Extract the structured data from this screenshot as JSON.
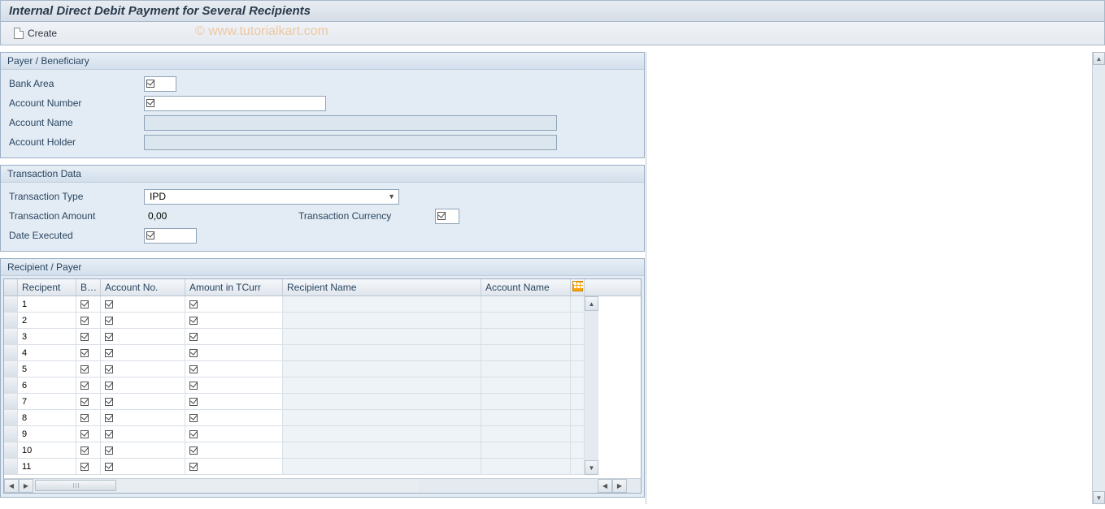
{
  "title": "Internal Direct Debit Payment for Several Recipients",
  "watermark": "© www.tutorialkart.com",
  "toolbar": {
    "create_label": "Create"
  },
  "panels": {
    "payer": {
      "title": "Payer / Beneficiary",
      "labels": {
        "bank_area": "Bank Area",
        "account_number": "Account Number",
        "account_name": "Account Name",
        "account_holder": "Account Holder"
      },
      "values": {
        "bank_area": "",
        "account_number": "",
        "account_name": "",
        "account_holder": ""
      }
    },
    "transaction": {
      "title": "Transaction Data",
      "labels": {
        "transaction_type": "Transaction Type",
        "transaction_amount": "Transaction Amount",
        "transaction_currency": "Transaction Currency",
        "date_executed": "Date Executed"
      },
      "values": {
        "transaction_type": "IPD",
        "transaction_amount": "0,00",
        "transaction_currency": "",
        "date_executed": ""
      }
    },
    "recipient": {
      "title": "Recipient / Payer",
      "columns": {
        "recipient": "Recipent",
        "bank": "Ba…",
        "account_no": "Account No.",
        "amount": "Amount in TCurr",
        "recipient_name": "Recipient Name",
        "account_name": "Account Name"
      },
      "rows": [
        {
          "num": "1"
        },
        {
          "num": "2"
        },
        {
          "num": "3"
        },
        {
          "num": "4"
        },
        {
          "num": "5"
        },
        {
          "num": "6"
        },
        {
          "num": "7"
        },
        {
          "num": "8"
        },
        {
          "num": "9"
        },
        {
          "num": "10"
        },
        {
          "num": "11"
        }
      ]
    }
  },
  "colors": {
    "panel_bg": "#e3ecf4",
    "header_gradient_top": "#e8eff6",
    "header_gradient_bottom": "#d2dfec",
    "border": "#9bafc5",
    "text": "#2a4560"
  }
}
